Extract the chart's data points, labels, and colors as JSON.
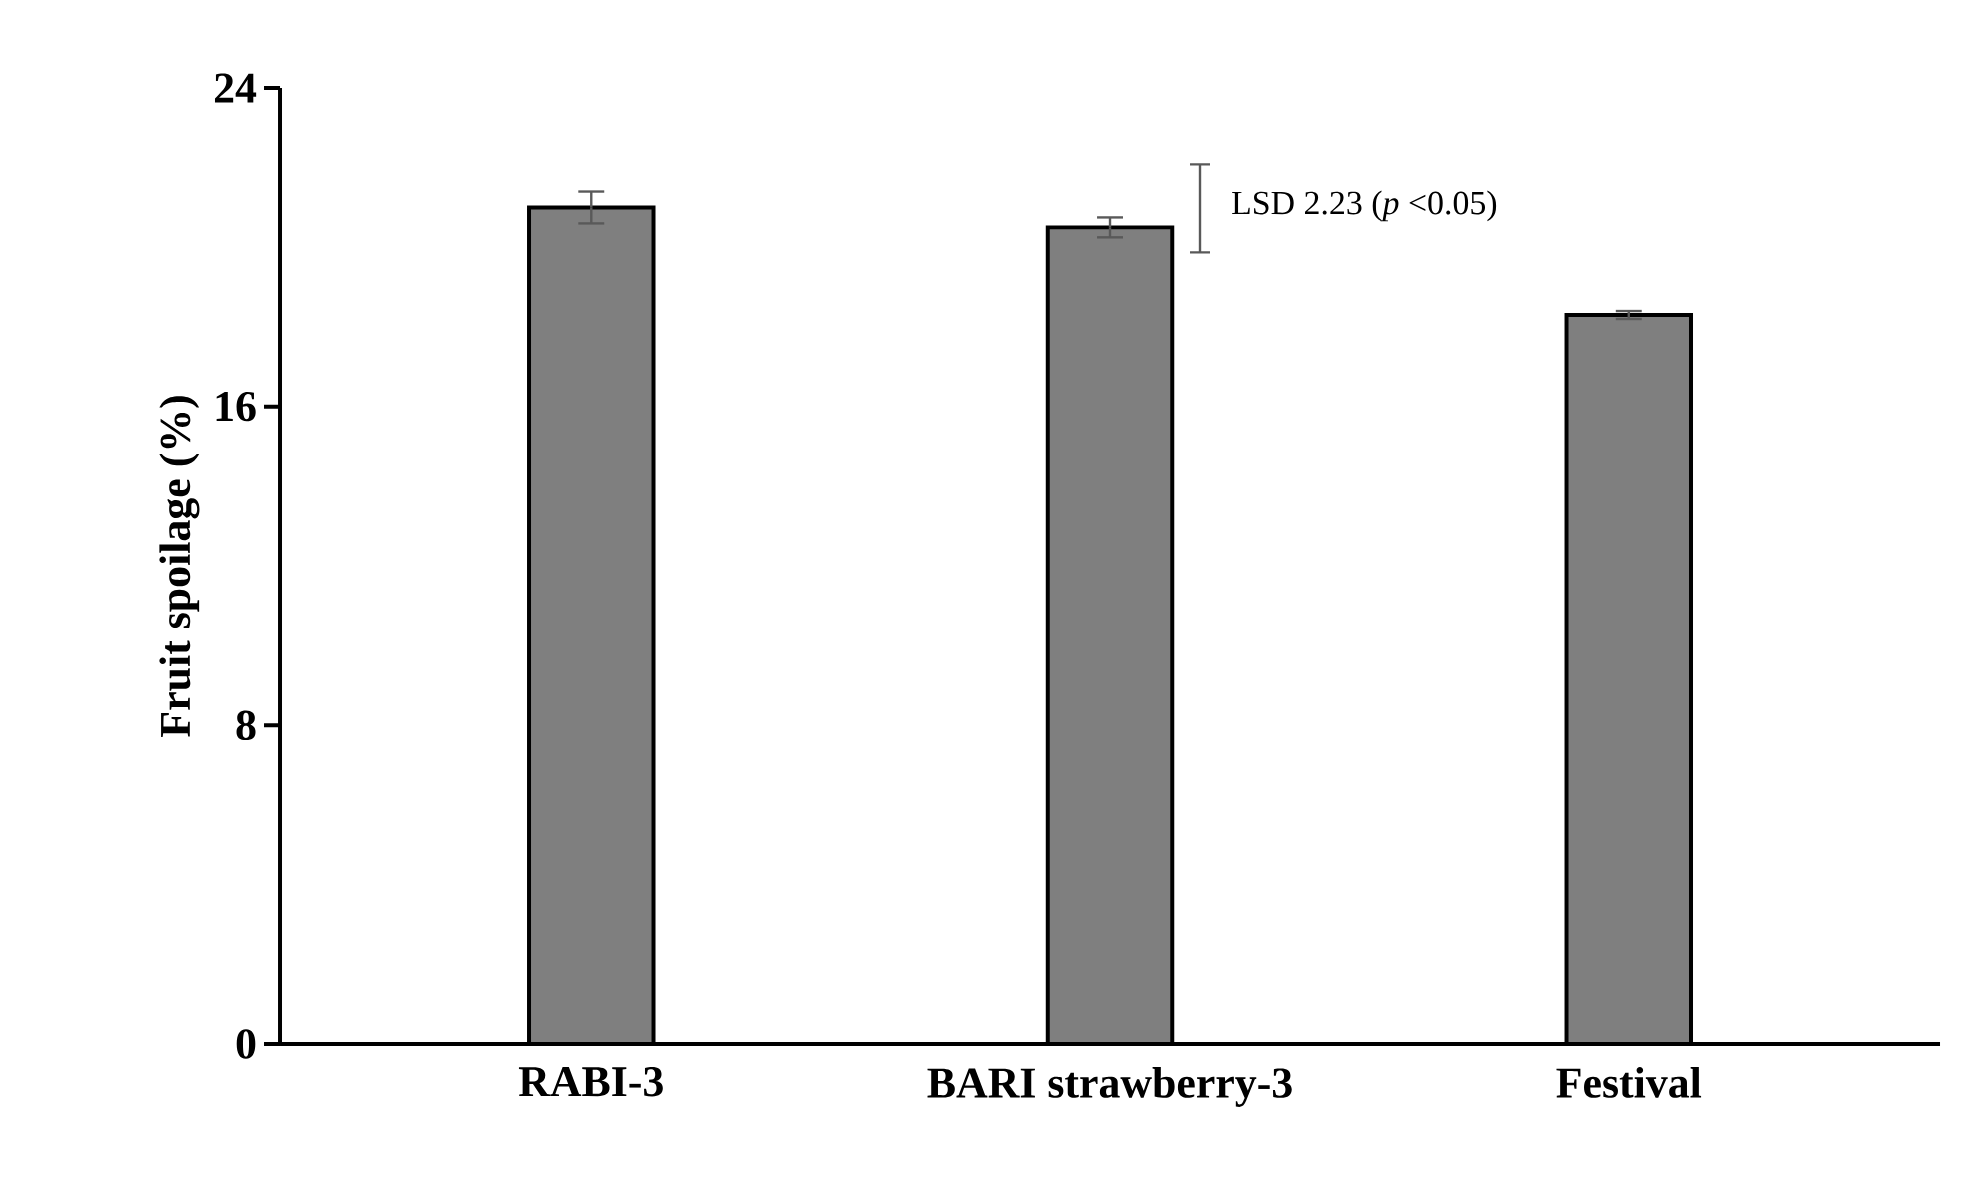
{
  "chart_data": {
    "type": "bar",
    "ylabel": "Fruit spoilage (%)",
    "categories": [
      "RABI-3",
      "BARI strawberry-3",
      "Festival"
    ],
    "values": [
      21.0,
      20.5,
      18.3
    ],
    "errors": [
      0.4,
      0.25,
      0.1
    ],
    "color": "#7f7f7f",
    "ylim": [
      0,
      24
    ],
    "yticks": [
      0,
      8,
      16,
      24
    ],
    "grid": false,
    "annotations": [
      "LSD 2.23 (*p* <0.05)"
    ]
  }
}
